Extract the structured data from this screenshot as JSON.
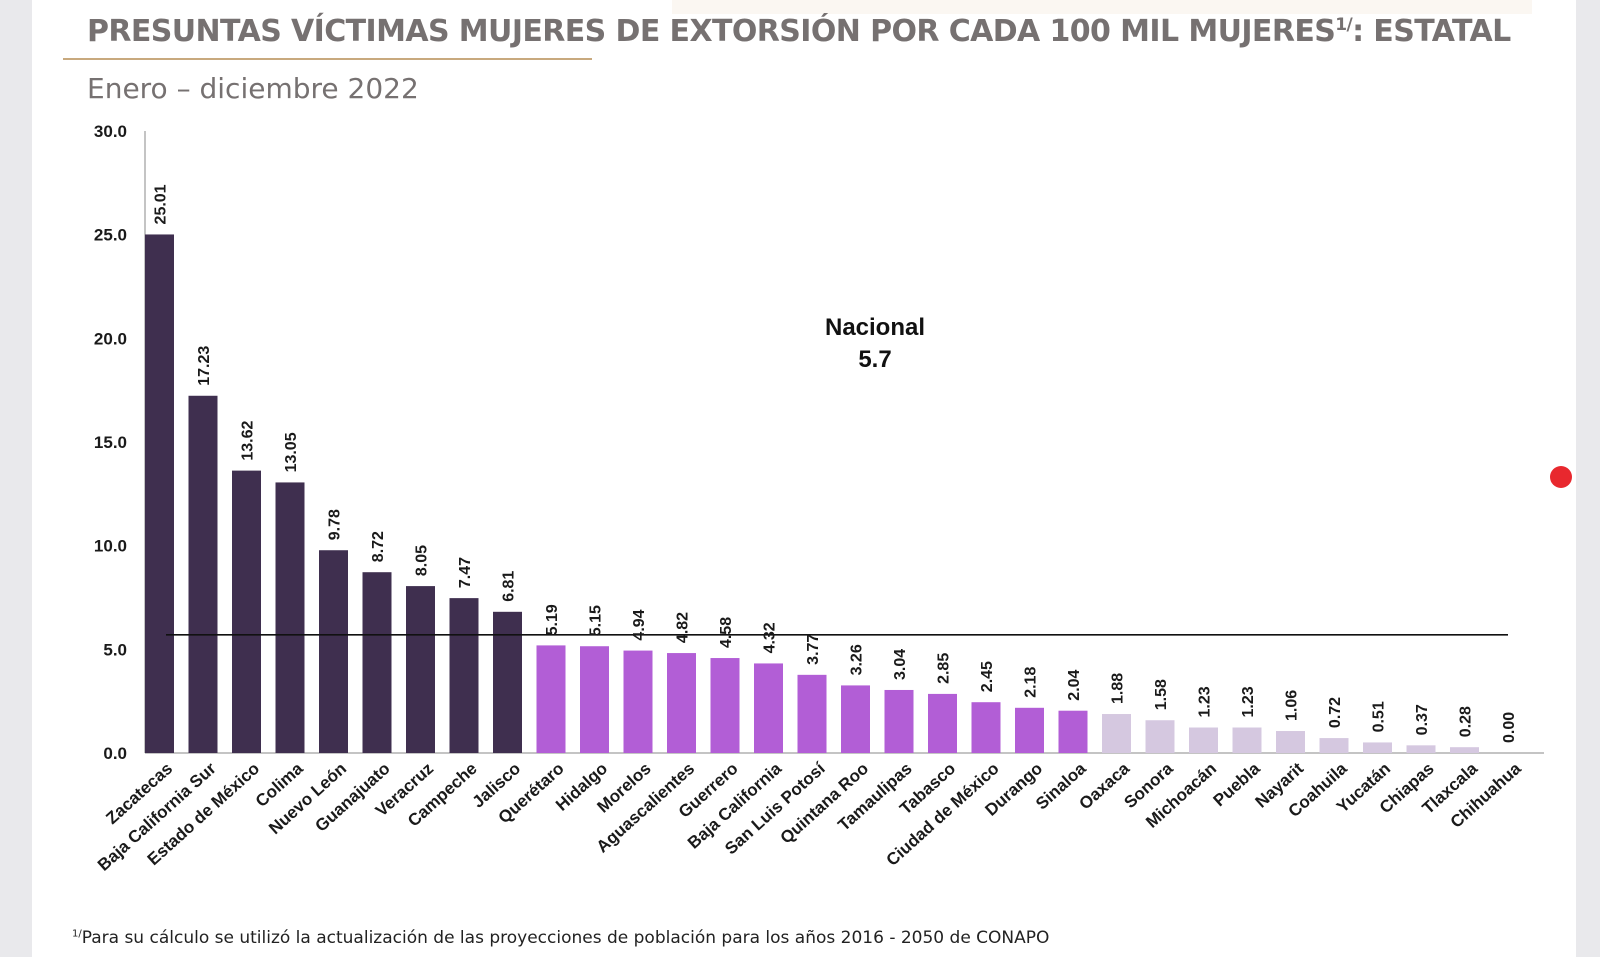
{
  "page": {
    "title_main": "PRESUNTAS VÍCTIMAS MUJERES DE EXTORSIÓN POR CADA 100 MIL MUJERES",
    "title_sup": "1/",
    "title_tail": ": ESTATAL",
    "subtitle": "Enero – diciembre 2022",
    "footnote_sup": "1/",
    "footnote": "Para su cálculo se utilizó la actualización de las proyecciones de población para los años 2016 - 2050 de CONAPO"
  },
  "chart_data": {
    "type": "bar",
    "title": "PRESUNTAS VÍCTIMAS MUJERES DE EXTORSIÓN POR CADA 100 MIL MUJERES1/: ESTATAL",
    "subtitle": "Enero – diciembre 2022",
    "xlabel": "",
    "ylabel": "",
    "ylim": [
      0,
      30
    ],
    "yticks": [
      "0.0",
      "5.0",
      "10.0",
      "15.0",
      "20.0",
      "25.0",
      "30.0"
    ],
    "grid": false,
    "legend": "none",
    "categories": [
      "Zacatecas",
      "Baja California Sur",
      "Estado de México",
      "Colima",
      "Nuevo León",
      "Guanajuato",
      "Veracruz",
      "Campeche",
      "Jalisco",
      "Querétaro",
      "Hidalgo",
      "Morelos",
      "Aguascalientes",
      "Guerrero",
      "Baja California",
      "San Luis Potosí",
      "Quintana Roo",
      "Tamaulipas",
      "Tabasco",
      "Ciudad de México",
      "Durango",
      "Sinaloa",
      "Oaxaca",
      "Sonora",
      "Michoacán",
      "Puebla",
      "Nayarit",
      "Coahuila",
      "Yucatán",
      "Chiapas",
      "Tlaxcala",
      "Chihuahua"
    ],
    "values": [
      25.01,
      17.23,
      13.62,
      13.05,
      9.78,
      8.72,
      8.05,
      7.47,
      6.81,
      5.19,
      5.15,
      4.94,
      4.82,
      4.58,
      4.32,
      3.77,
      3.26,
      3.04,
      2.85,
      2.45,
      2.18,
      2.04,
      1.88,
      1.58,
      1.23,
      1.23,
      1.06,
      0.72,
      0.51,
      0.37,
      0.28,
      0.0
    ],
    "value_labels": [
      "25.01",
      "17.23",
      "13.62",
      "13.05",
      "9.78",
      "8.72",
      "8.05",
      "7.47",
      "6.81",
      "5.19",
      "5.15",
      "4.94",
      "4.82",
      "4.58",
      "4.32",
      "3.77",
      "3.26",
      "3.04",
      "2.85",
      "2.45",
      "2.18",
      "2.04",
      "1.88",
      "1.58",
      "1.23",
      "1.23",
      "1.06",
      "0.72",
      "0.51",
      "0.37",
      "0.28",
      "0.00"
    ],
    "bar_groups": [
      0,
      0,
      0,
      0,
      0,
      0,
      0,
      0,
      0,
      1,
      1,
      1,
      1,
      1,
      1,
      1,
      1,
      1,
      1,
      1,
      1,
      1,
      2,
      2,
      2,
      2,
      2,
      2,
      2,
      2,
      2,
      2
    ],
    "group_colors": [
      "#3f2f4f",
      "#b25ed6",
      "#d5c8e0"
    ],
    "reference_line": {
      "label": "Nacional",
      "value": 5.7,
      "value_label": "5.7"
    }
  }
}
